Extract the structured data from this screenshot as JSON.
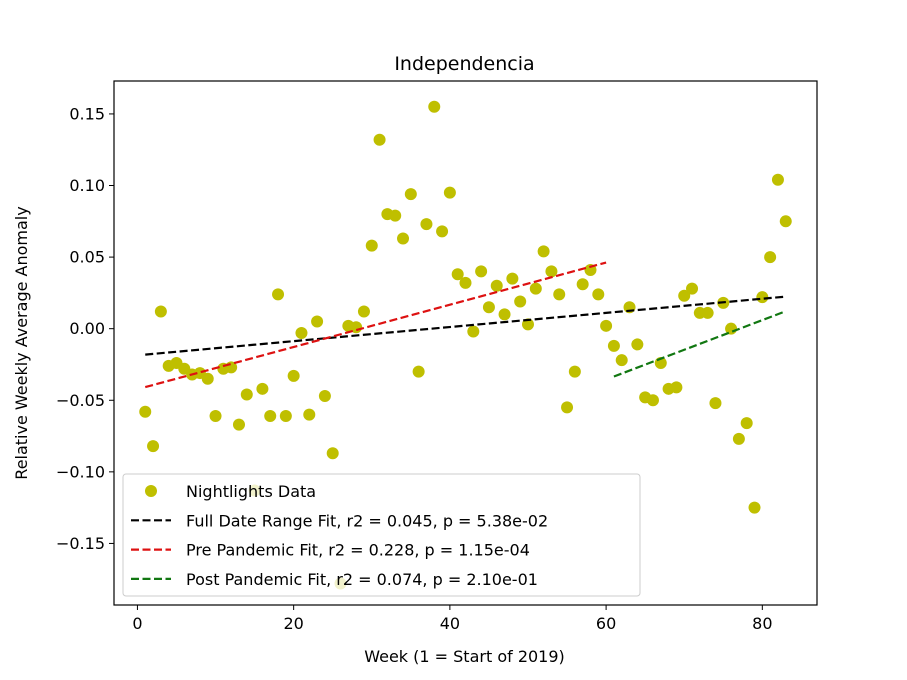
{
  "chart_data": {
    "type": "scatter",
    "title": "Independencia",
    "xlabel": "Week (1 = Start of 2019)",
    "ylabel": "Relative Weekly Average Anomaly",
    "xlim": [
      -3,
      87
    ],
    "ylim": [
      -0.193,
      0.173
    ],
    "xticks": [
      0,
      20,
      40,
      60,
      80
    ],
    "yticks": [
      -0.15,
      -0.1,
      -0.05,
      0.0,
      0.05,
      0.1,
      0.15
    ],
    "ytick_labels": [
      "−0.15",
      "−0.10",
      "−0.05",
      "0.00",
      "0.05",
      "0.10",
      "0.15"
    ],
    "grid": false,
    "legend_position": "lower-left",
    "colors": {
      "points": "#bfbf00",
      "full_fit": "#000000",
      "pre_fit": "#dd1111",
      "post_fit": "#117711"
    },
    "series": [
      {
        "name": "Nightlights Data",
        "kind": "points",
        "points": [
          [
            1,
            -0.058
          ],
          [
            2,
            -0.082
          ],
          [
            3,
            0.012
          ],
          [
            4,
            -0.026
          ],
          [
            5,
            -0.024
          ],
          [
            6,
            -0.028
          ],
          [
            7,
            -0.032
          ],
          [
            8,
            -0.031
          ],
          [
            9,
            -0.035
          ],
          [
            10,
            -0.061
          ],
          [
            11,
            -0.028
          ],
          [
            12,
            -0.027
          ],
          [
            13,
            -0.067
          ],
          [
            14,
            -0.046
          ],
          [
            15,
            -0.113
          ],
          [
            16,
            -0.042
          ],
          [
            17,
            -0.061
          ],
          [
            18,
            0.024
          ],
          [
            19,
            -0.061
          ],
          [
            20,
            -0.033
          ],
          [
            21,
            -0.003
          ],
          [
            22,
            -0.06
          ],
          [
            23,
            0.005
          ],
          [
            24,
            -0.047
          ],
          [
            25,
            -0.087
          ],
          [
            26,
            -0.178
          ],
          [
            27,
            0.002
          ],
          [
            28,
            0.001
          ],
          [
            29,
            0.012
          ],
          [
            30,
            0.058
          ],
          [
            31,
            0.132
          ],
          [
            32,
            0.08
          ],
          [
            33,
            0.079
          ],
          [
            34,
            0.063
          ],
          [
            35,
            0.094
          ],
          [
            36,
            -0.03
          ],
          [
            37,
            0.073
          ],
          [
            38,
            0.155
          ],
          [
            39,
            0.068
          ],
          [
            40,
            0.095
          ],
          [
            41,
            0.038
          ],
          [
            42,
            0.032
          ],
          [
            43,
            -0.002
          ],
          [
            44,
            0.04
          ],
          [
            45,
            0.015
          ],
          [
            46,
            0.03
          ],
          [
            47,
            0.01
          ],
          [
            48,
            0.035
          ],
          [
            49,
            0.019
          ],
          [
            50,
            0.003
          ],
          [
            51,
            0.028
          ],
          [
            52,
            0.054
          ],
          [
            53,
            0.04
          ],
          [
            54,
            0.024
          ],
          [
            55,
            -0.055
          ],
          [
            56,
            -0.03
          ],
          [
            57,
            0.031
          ],
          [
            58,
            0.041
          ],
          [
            59,
            0.024
          ],
          [
            60,
            0.002
          ],
          [
            61,
            -0.012
          ],
          [
            62,
            -0.022
          ],
          [
            63,
            0.015
          ],
          [
            64,
            -0.011
          ],
          [
            65,
            -0.048
          ],
          [
            66,
            -0.05
          ],
          [
            67,
            -0.024
          ],
          [
            68,
            -0.042
          ],
          [
            69,
            -0.041
          ],
          [
            70,
            0.023
          ],
          [
            71,
            0.028
          ],
          [
            72,
            0.011
          ],
          [
            73,
            0.011
          ],
          [
            74,
            -0.052
          ],
          [
            75,
            0.018
          ],
          [
            76,
            0.0
          ],
          [
            77,
            -0.077
          ],
          [
            78,
            -0.066
          ],
          [
            79,
            -0.125
          ],
          [
            80,
            0.022
          ],
          [
            81,
            0.05
          ],
          [
            82,
            0.104
          ],
          [
            83,
            0.075
          ]
        ]
      },
      {
        "name": "Full Date Range Fit, r2 = 0.045, p = 5.38e-02",
        "kind": "line",
        "points": [
          [
            1,
            -0.0181
          ],
          [
            83,
            0.0224
          ]
        ]
      },
      {
        "name": "Pre Pandemic Fit, r2 = 0.228, p = 1.15e-04",
        "kind": "line",
        "points": [
          [
            1,
            -0.0408
          ],
          [
            60,
            0.0462
          ]
        ]
      },
      {
        "name": "Post Pandemic Fit, r2 = 0.074, p = 2.10e-01",
        "kind": "line",
        "points": [
          [
            61,
            -0.0334
          ],
          [
            83,
            0.0122
          ]
        ]
      }
    ]
  }
}
